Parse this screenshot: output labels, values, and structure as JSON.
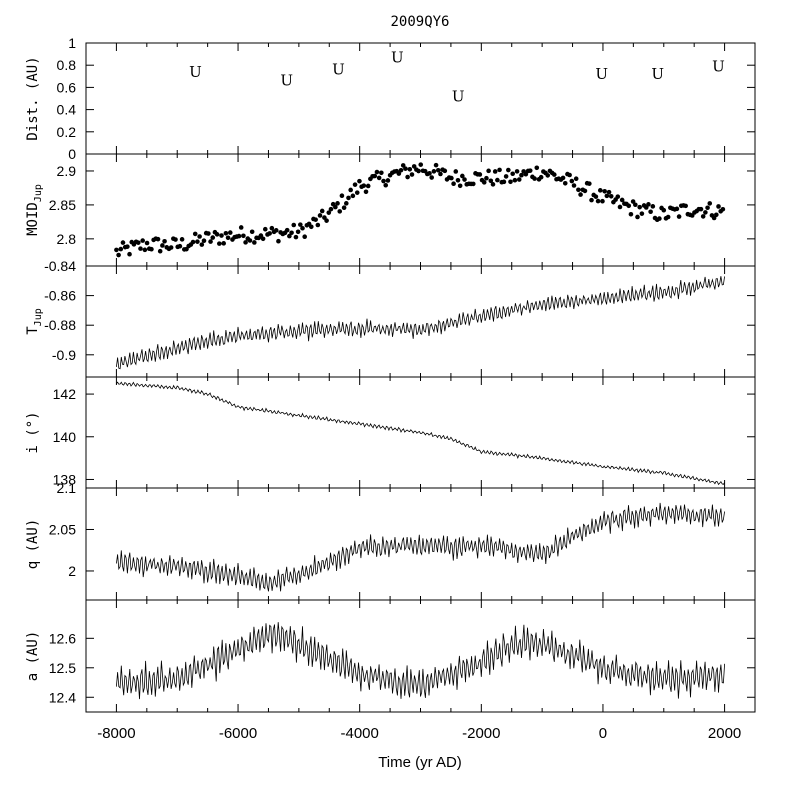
{
  "chart_data": {
    "type": "multi-panel-line",
    "title": "2009QY6",
    "xlabel": "Time (yr AD)",
    "xlim": [
      -8500,
      2500
    ],
    "xticks": [
      -8000,
      -6000,
      -4000,
      -2000,
      0,
      2000
    ],
    "xtick_labels": [
      "-8000",
      "-6000",
      "-4000",
      "-2000",
      "0",
      "2000"
    ],
    "panels": [
      {
        "key": "dist",
        "ylabel": "Dist. (AU)",
        "kind": "markers",
        "ylim": [
          0,
          1
        ],
        "yticks": [
          0,
          0.2,
          0.4,
          0.6,
          0.8,
          1
        ],
        "ytick_labels": [
          "0",
          "0.2",
          "0.4",
          "0.6",
          "0.8",
          "1"
        ],
        "marker_label": "U",
        "points": [
          {
            "x": -6700,
            "y": 0.74
          },
          {
            "x": -5200,
            "y": 0.66
          },
          {
            "x": -4350,
            "y": 0.76
          },
          {
            "x": -3380,
            "y": 0.87
          },
          {
            "x": -2380,
            "y": 0.52
          },
          {
            "x": -20,
            "y": 0.72
          },
          {
            "x": 900,
            "y": 0.72
          },
          {
            "x": 1900,
            "y": 0.79
          }
        ]
      },
      {
        "key": "moid",
        "ylabel": "MOID",
        "ylabel_sub": "Jup",
        "kind": "scatter",
        "ylim": [
          2.76,
          2.925
        ],
        "yticks": [
          2.8,
          2.85,
          2.9
        ],
        "ytick_labels": [
          "2.8",
          "2.85",
          "2.9"
        ],
        "trend": [
          {
            "x": -8000,
            "y": 2.78
          },
          {
            "x": -7500,
            "y": 2.792
          },
          {
            "x": -7000,
            "y": 2.79
          },
          {
            "x": -6500,
            "y": 2.8
          },
          {
            "x": -6000,
            "y": 2.806
          },
          {
            "x": -5500,
            "y": 2.807
          },
          {
            "x": -5000,
            "y": 2.81
          },
          {
            "x": -4600,
            "y": 2.83
          },
          {
            "x": -4200,
            "y": 2.86
          },
          {
            "x": -4000,
            "y": 2.878
          },
          {
            "x": -3500,
            "y": 2.893
          },
          {
            "x": -3000,
            "y": 2.905
          },
          {
            "x": -2500,
            "y": 2.89
          },
          {
            "x": -2000,
            "y": 2.89
          },
          {
            "x": -1500,
            "y": 2.89
          },
          {
            "x": -1000,
            "y": 2.9
          },
          {
            "x": -500,
            "y": 2.882
          },
          {
            "x": 0,
            "y": 2.86
          },
          {
            "x": 500,
            "y": 2.845
          },
          {
            "x": 1000,
            "y": 2.835
          },
          {
            "x": 1500,
            "y": 2.845
          },
          {
            "x": 2000,
            "y": 2.84
          }
        ],
        "scatter_spread": 0.012
      },
      {
        "key": "tjup",
        "ylabel": "T",
        "ylabel_sub": "Jup",
        "kind": "line",
        "ylim": [
          -0.915,
          -0.84
        ],
        "yticks": [
          -0.9,
          -0.88,
          -0.86,
          -0.84
        ],
        "ytick_labels": [
          "-0.9",
          "-0.88",
          "-0.86",
          "-0.84"
        ],
        "trend": [
          {
            "x": -8000,
            "y": -0.907
          },
          {
            "x": -7000,
            "y": -0.895
          },
          {
            "x": -6000,
            "y": -0.887
          },
          {
            "x": -5000,
            "y": -0.884
          },
          {
            "x": -4000,
            "y": -0.882
          },
          {
            "x": -3000,
            "y": -0.883
          },
          {
            "x": -2000,
            "y": -0.874
          },
          {
            "x": -1000,
            "y": -0.866
          },
          {
            "x": 0,
            "y": -0.862
          },
          {
            "x": 1000,
            "y": -0.858
          },
          {
            "x": 2000,
            "y": -0.85
          }
        ],
        "amplitude": 0.005
      },
      {
        "key": "incl",
        "ylabel": "i (°)",
        "kind": "line",
        "ylim": [
          137.6,
          142.8
        ],
        "yticks": [
          138,
          140,
          142
        ],
        "ytick_labels": [
          "138",
          "140",
          "142"
        ],
        "trend": [
          {
            "x": -8000,
            "y": 142.5
          },
          {
            "x": -7000,
            "y": 142.3
          },
          {
            "x": -6500,
            "y": 142.0
          },
          {
            "x": -6000,
            "y": 141.4
          },
          {
            "x": -5000,
            "y": 141.0
          },
          {
            "x": -4000,
            "y": 140.6
          },
          {
            "x": -3000,
            "y": 140.2
          },
          {
            "x": -2500,
            "y": 139.9
          },
          {
            "x": -2000,
            "y": 139.3
          },
          {
            "x": -1000,
            "y": 139.0
          },
          {
            "x": 0,
            "y": 138.6
          },
          {
            "x": 1000,
            "y": 138.3
          },
          {
            "x": 2000,
            "y": 137.8
          }
        ],
        "amplitude": 0.08
      },
      {
        "key": "q",
        "ylabel": "q (AU)",
        "kind": "line",
        "ylim": [
          1.965,
          2.1
        ],
        "yticks": [
          2,
          2.05,
          2.1
        ],
        "ytick_labels": [
          "2",
          "2.05",
          "2.1"
        ],
        "trend": [
          {
            "x": -8000,
            "y": 2.01
          },
          {
            "x": -7000,
            "y": 2.005
          },
          {
            "x": -6000,
            "y": 1.995
          },
          {
            "x": -5500,
            "y": 1.985
          },
          {
            "x": -5000,
            "y": 1.995
          },
          {
            "x": -4500,
            "y": 2.01
          },
          {
            "x": -4000,
            "y": 2.028
          },
          {
            "x": -3000,
            "y": 2.03
          },
          {
            "x": -2000,
            "y": 2.03
          },
          {
            "x": -1000,
            "y": 2.02
          },
          {
            "x": -500,
            "y": 2.04
          },
          {
            "x": 0,
            "y": 2.06
          },
          {
            "x": 1000,
            "y": 2.07
          },
          {
            "x": 2000,
            "y": 2.065
          }
        ],
        "amplitude": 0.012
      },
      {
        "key": "a",
        "ylabel": "a (AU)",
        "kind": "line",
        "ylim": [
          12.35,
          12.73
        ],
        "yticks": [
          12.4,
          12.5,
          12.6
        ],
        "ytick_labels": [
          "12.4",
          "12.5",
          "12.6"
        ],
        "trend": [
          {
            "x": -8000,
            "y": 12.45
          },
          {
            "x": -7000,
            "y": 12.46
          },
          {
            "x": -6000,
            "y": 12.56
          },
          {
            "x": -5400,
            "y": 12.62
          },
          {
            "x": -5000,
            "y": 12.58
          },
          {
            "x": -4000,
            "y": 12.48
          },
          {
            "x": -3000,
            "y": 12.44
          },
          {
            "x": -2000,
            "y": 12.52
          },
          {
            "x": -1500,
            "y": 12.58
          },
          {
            "x": -1000,
            "y": 12.58
          },
          {
            "x": 0,
            "y": 12.5
          },
          {
            "x": 1000,
            "y": 12.46
          },
          {
            "x": 2000,
            "y": 12.48
          }
        ],
        "amplitude": 0.05
      }
    ]
  }
}
